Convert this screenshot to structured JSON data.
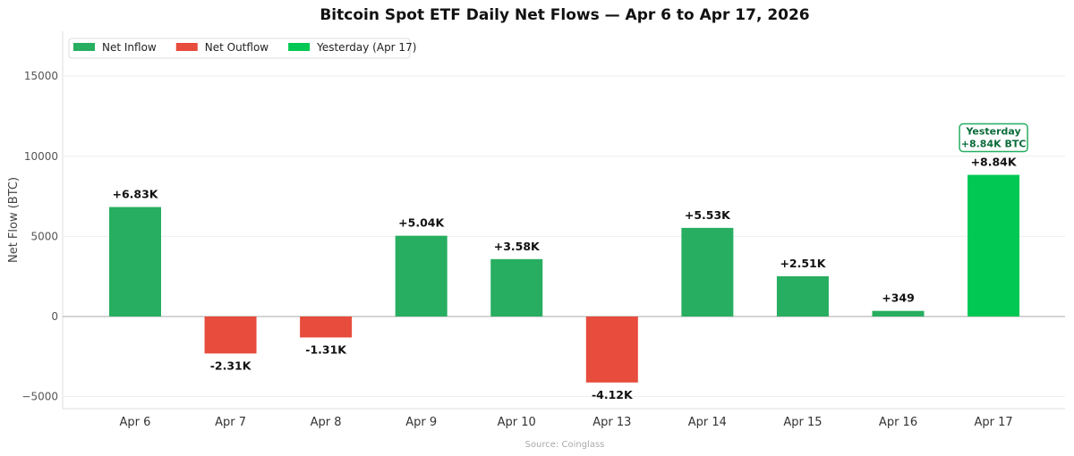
{
  "chart_data": {
    "type": "bar",
    "title": "Bitcoin Spot ETF Daily Net Flows — Apr 6 to Apr 17, 2026",
    "xlabel": "",
    "ylabel": "Net Flow (BTC)",
    "source": "Source: Coinglass",
    "categories": [
      "Apr 6",
      "Apr 7",
      "Apr 8",
      "Apr 9",
      "Apr 10",
      "Apr 13",
      "Apr 14",
      "Apr 15",
      "Apr 16",
      "Apr 17"
    ],
    "values": [
      6830,
      -2310,
      -1310,
      5040,
      3580,
      -4120,
      5530,
      2510,
      349,
      8840
    ],
    "data_labels": [
      "+6.83K",
      "-2.31K",
      "-1.31K",
      "+5.04K",
      "+3.58K",
      "-4.12K",
      "+5.53K",
      "+2.51K",
      "+349",
      "+8.84K"
    ],
    "ylim": [
      -5750,
      17800
    ],
    "yticks": [
      -5000,
      0,
      5000,
      10000,
      15000
    ],
    "ytick_labels": [
      "−5000",
      "0",
      "5000",
      "10000",
      "15000"
    ],
    "grid": "horizontal",
    "legend_placement": "top-left",
    "legend": [
      {
        "label": "Net Inflow",
        "color": "#27ae60"
      },
      {
        "label": "Net Outflow",
        "color": "#e74c3c"
      },
      {
        "label": "Yesterday (Apr 17)",
        "color": "#00c853"
      }
    ],
    "annotation": {
      "line1": "Yesterday",
      "line2": "+8.84K BTC",
      "color": "#0b6b3a"
    },
    "colors": {
      "inflow": "#27ae60",
      "outflow": "#e74c3c",
      "yesterday": "#00c853"
    }
  }
}
